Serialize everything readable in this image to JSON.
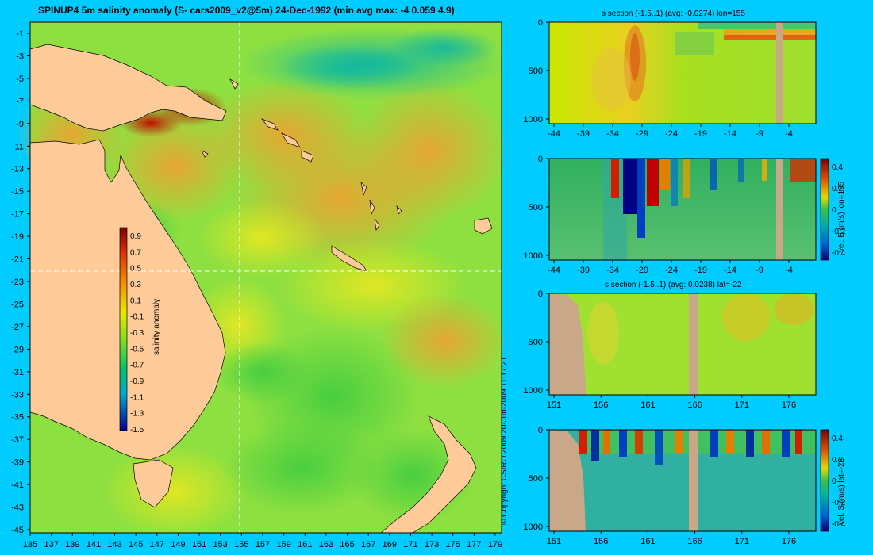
{
  "title": "SPINUP4 5m salinity anomaly  (S- cars2009_v2@5m) 24-Dec-1992  (min avg max: -4 0.059 4.9)",
  "copyright": "© Copyright CSIRO 2009    20-Jun-2009 11:17:21",
  "map": {
    "lat_ticks": [
      "-1",
      "-3",
      "-5",
      "-7",
      "-9",
      "-11",
      "-13",
      "-15",
      "-17",
      "-19",
      "-21",
      "-23",
      "-25",
      "-27",
      "-29",
      "-31",
      "-33",
      "-35",
      "-37",
      "-39",
      "-41",
      "-43",
      "-45"
    ],
    "lon_ticks": [
      "135",
      "137",
      "139",
      "141",
      "143",
      "145",
      "147",
      "149",
      "151",
      "153",
      "155",
      "157",
      "159",
      "161",
      "163",
      "165",
      "167",
      "169",
      "171",
      "173",
      "175",
      "177",
      "179"
    ],
    "colorbar": {
      "label": "salinity anomaly",
      "ticks": [
        "0.9",
        "0.7",
        "0.5",
        "0.3",
        "0.1",
        "-0.1",
        "-0.3",
        "-0.5",
        "-0.7",
        "-0.9",
        "-1.1",
        "-1.3",
        "-1.5"
      ]
    }
  },
  "panels": [
    {
      "title": "s section (-1.5..1) (avg: -0.0274) lon=155",
      "y_ticks": [
        "0",
        "500",
        "1000"
      ],
      "x_ticks": [
        "-44",
        "-39",
        "-34",
        "-29",
        "-24",
        "-19",
        "-14",
        "-9",
        "-4"
      ],
      "colorbar_label": "",
      "colorbar_ticks": []
    },
    {
      "title": "",
      "y_ticks": [
        "0",
        "500",
        "1000"
      ],
      "x_ticks": [
        "-44",
        "-39",
        "-34",
        "-29",
        "-24",
        "-19",
        "-14",
        "-9",
        "-4"
      ],
      "colorbar_label": "vel. E (m/s) lon=155",
      "colorbar_ticks": [
        "0.4",
        "0.2",
        "0",
        "-0.2",
        "-0.4"
      ]
    },
    {
      "title": "s section (-1.5..1) (avg: 0.0238) lat=-22",
      "y_ticks": [
        "0",
        "500",
        "1000"
      ],
      "x_ticks": [
        "151",
        "156",
        "161",
        "166",
        "171",
        "176"
      ],
      "colorbar_label": "",
      "colorbar_ticks": []
    },
    {
      "title": "",
      "y_ticks": [
        "0",
        "500",
        "1000"
      ],
      "x_ticks": [
        "151",
        "156",
        "161",
        "166",
        "171",
        "176"
      ],
      "colorbar_label": "vel. S (m/s) lat=-22",
      "colorbar_ticks": [
        "0.4",
        "0.2",
        "0",
        "-0.2",
        "-0.4"
      ]
    }
  ],
  "colors": {
    "background": "#00ccff",
    "land": "#ffcc99",
    "section_land": "#c8a888"
  }
}
